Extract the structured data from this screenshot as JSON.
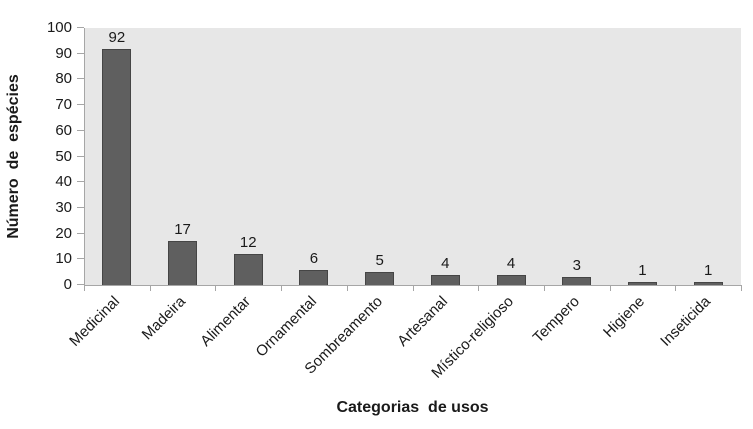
{
  "chart_data": {
    "type": "bar",
    "title": "",
    "categories": [
      "Medicinal",
      "Madeira",
      "Alimentar",
      "Ornamental",
      "Sombreamento",
      "Artesanal",
      "Místico-religioso",
      "Tempero",
      "Higiene",
      "Inseticida"
    ],
    "values": [
      92,
      17,
      12,
      6,
      5,
      4,
      4,
      3,
      1,
      1
    ],
    "xlabel": "Categorias  de usos",
    "ylabel": "Número  de  espécies",
    "ylim": [
      0,
      100
    ],
    "ytick_step": 10,
    "ytick_labels": [
      "0",
      "10",
      "20",
      "30",
      "40",
      "50",
      "60",
      "70",
      "80",
      "90",
      "100"
    ],
    "grid": false,
    "legend": "none",
    "bar_labels_shown": true,
    "colors": {
      "bar_fill": "#5f5f5f",
      "bar_border": "#454545",
      "plot_background": "#e7e7e7",
      "axis_line": "#a6a6a6",
      "text": "#1a1a1a",
      "canvas_background": "#ffffff"
    }
  }
}
